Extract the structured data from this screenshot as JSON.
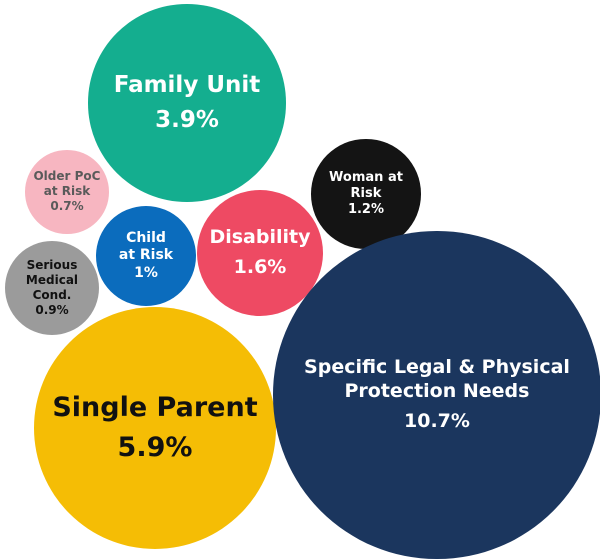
{
  "chart_data": {
    "type": "bubble",
    "categories": [
      "Family Unit",
      "Older PoC at Risk",
      "Woman at Risk",
      "Child at Risk",
      "Disability",
      "Serious Medical Cond.",
      "Single Parent",
      "Specific Legal & Physical Protection Needs"
    ],
    "values": [
      3.9,
      0.7,
      1.2,
      1,
      1.6,
      0.9,
      5.9,
      10.7
    ],
    "value_labels": [
      "3.9%",
      "0.7%",
      "1.2%",
      "1%",
      "1.6%",
      "0.9%",
      "5.9%",
      "10.7%"
    ],
    "colors": [
      "#14ae8f",
      "#f7b6c1",
      "#141414",
      "#0b6cbd",
      "#ee4a63",
      "#9b9b9b",
      "#f5bd05",
      "#1b365e"
    ]
  }
}
